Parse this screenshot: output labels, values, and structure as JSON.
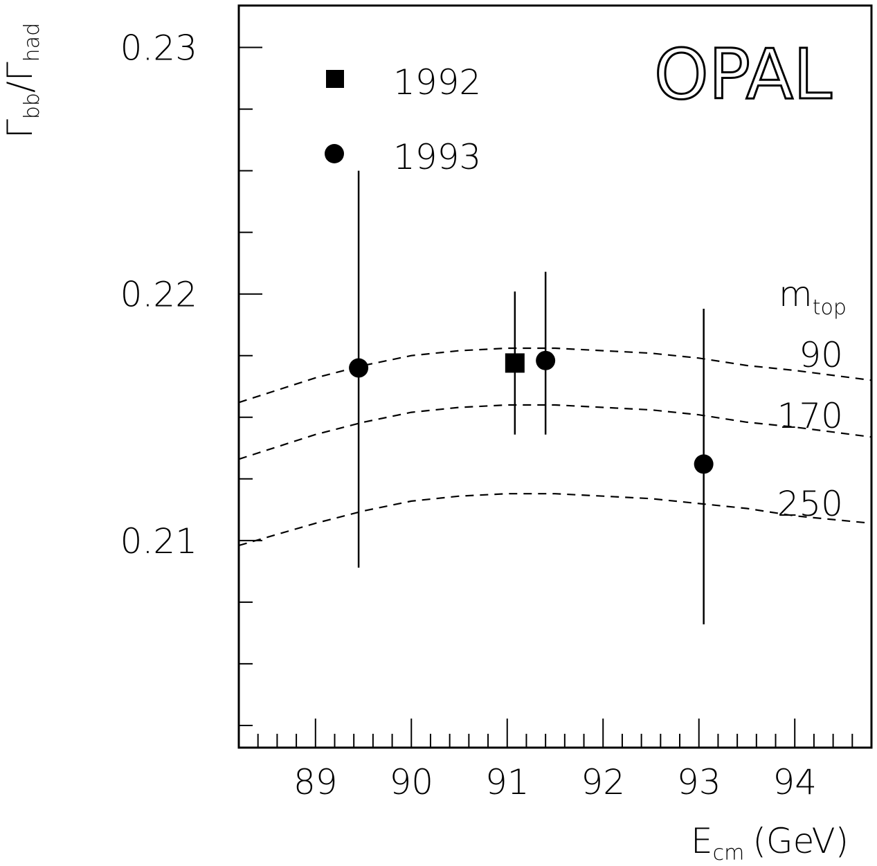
{
  "chart_data": {
    "type": "scatter",
    "title": "OPAL",
    "xlabel": "E",
    "xlabel_sub": "cm",
    "xlabel_unit": "(GeV)",
    "ylabel_num": "Γ",
    "ylabel_num_sub": "bb",
    "ylabel_sep": "/",
    "ylabel_den": "Γ",
    "ylabel_den_sub": "had",
    "xlim": [
      88.2,
      94.8
    ],
    "ylim": [
      0.2016,
      0.2317
    ],
    "x_ticks": [
      "89",
      "90",
      "91",
      "92",
      "93",
      "94"
    ],
    "y_ticks": [
      "0.21",
      "0.22",
      "0.23"
    ],
    "series": [
      {
        "name": "1992",
        "marker": "square",
        "points": [
          {
            "x": 91.08,
            "y": 0.2172,
            "yerr_low": 0.2143,
            "yerr_high": 0.2201
          }
        ]
      },
      {
        "name": "1993",
        "marker": "circle",
        "points": [
          {
            "x": 89.45,
            "y": 0.217,
            "yerr_low": 0.2089,
            "yerr_high": 0.225
          },
          {
            "x": 91.4,
            "y": 0.2173,
            "yerr_low": 0.2143,
            "yerr_high": 0.2209
          },
          {
            "x": 93.05,
            "y": 0.2131,
            "yerr_low": 0.2066,
            "yerr_high": 0.2194
          }
        ]
      }
    ],
    "curves_label": "m",
    "curves_label_sub": "top",
    "curves": [
      {
        "label": "90",
        "x": [
          88.2,
          89.0,
          89.5,
          90.0,
          90.5,
          91.0,
          91.5,
          92.0,
          92.5,
          93.0,
          93.5,
          94.0,
          94.8
        ],
        "y": [
          0.2156,
          0.2166,
          0.2171,
          0.2175,
          0.2177,
          0.2178,
          0.2178,
          0.2177,
          0.2176,
          0.2174,
          0.2171,
          0.2169,
          0.2165
        ]
      },
      {
        "label": "170",
        "x": [
          88.2,
          89.0,
          89.5,
          90.0,
          90.5,
          91.0,
          91.5,
          92.0,
          92.5,
          93.0,
          93.5,
          94.0,
          94.8
        ],
        "y": [
          0.2133,
          0.2143,
          0.2148,
          0.2152,
          0.2154,
          0.2155,
          0.2155,
          0.2154,
          0.2153,
          0.2151,
          0.2148,
          0.2146,
          0.2142
        ]
      },
      {
        "label": "250",
        "x": [
          88.2,
          89.0,
          89.5,
          90.0,
          90.5,
          91.0,
          91.5,
          92.0,
          92.5,
          93.0,
          93.5,
          94.0,
          94.8
        ],
        "y": [
          0.2098,
          0.2107,
          0.2112,
          0.2116,
          0.2118,
          0.2119,
          0.2119,
          0.2118,
          0.2117,
          0.2115,
          0.2113,
          0.211,
          0.2107
        ]
      }
    ]
  }
}
